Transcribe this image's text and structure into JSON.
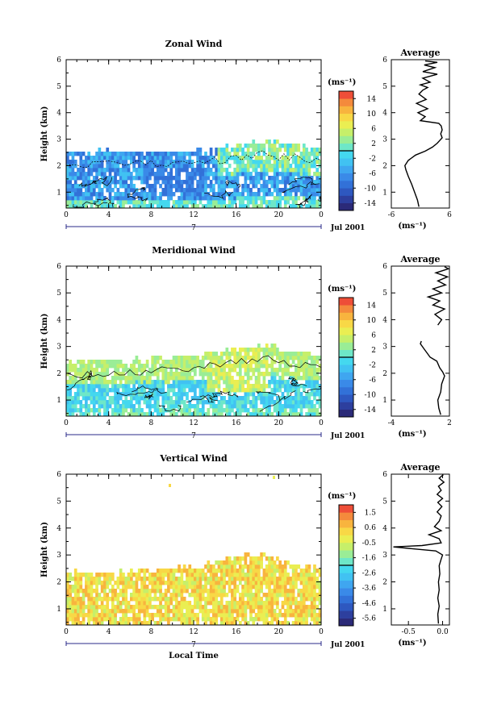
{
  "chart_data": [
    {
      "type": "heatmap",
      "title": "Zonal Wind",
      "ylabel": "Height (km)",
      "x_ticks": [
        "0",
        "4",
        "8",
        "12",
        "16",
        "20",
        "0"
      ],
      "y_ticks": [
        "1",
        "2",
        "3",
        "4",
        "5",
        "6"
      ],
      "xlim": [
        0,
        24
      ],
      "ylim": [
        0.4,
        6
      ],
      "day_label": "7",
      "date_label": "Jul 2001",
      "colorbar_unit": "(ms⁻¹)",
      "colorbar_ticks": [
        "14",
        "10",
        "6",
        "2",
        "-2",
        "-6",
        "-10",
        "-14"
      ],
      "colorbar_range": [
        -16,
        16
      ],
      "data_top_km": [
        2.45,
        2.42,
        2.45,
        2.47,
        2.45,
        2.44,
        2.45,
        2.45,
        2.46,
        2.45,
        2.46,
        2.47,
        2.5,
        2.55,
        2.6,
        2.65,
        2.72,
        2.78,
        2.85,
        2.85,
        2.75,
        2.72,
        2.68,
        2.65
      ],
      "profile": {
        "title": "Average",
        "xlabel": "(ms⁻¹)",
        "x_ticks": [
          "-6",
          "6"
        ],
        "xlim": [
          -6,
          6
        ],
        "y_ticks": [
          "1",
          "2",
          "3",
          "4",
          "5",
          "6"
        ],
        "ylim": [
          0.4,
          6
        ],
        "points": [
          [
            -0.3,
            0.45
          ],
          [
            -0.6,
            0.7
          ],
          [
            -1.2,
            1.0
          ],
          [
            -1.8,
            1.3
          ],
          [
            -2.5,
            1.6
          ],
          [
            -3.0,
            1.85
          ],
          [
            -3.2,
            2.0
          ],
          [
            -2.5,
            2.2
          ],
          [
            -1.0,
            2.4
          ],
          [
            1.0,
            2.55
          ],
          [
            2.5,
            2.7
          ],
          [
            3.5,
            2.85
          ],
          [
            4.0,
            2.95
          ],
          [
            4.5,
            3.05
          ],
          [
            4.2,
            3.2
          ],
          [
            4.5,
            3.35
          ],
          [
            4.3,
            3.5
          ],
          [
            3.8,
            3.6
          ],
          [
            0.0,
            3.7
          ],
          [
            1.0,
            3.85
          ],
          [
            -0.5,
            4.0
          ],
          [
            1.5,
            4.15
          ],
          [
            -0.8,
            4.35
          ],
          [
            1.2,
            4.5
          ],
          [
            -0.3,
            4.7
          ],
          [
            0.5,
            4.85
          ],
          [
            1.5,
            4.95
          ],
          [
            0.0,
            5.05
          ],
          [
            2.0,
            5.15
          ],
          [
            0.5,
            5.3
          ],
          [
            3.5,
            5.45
          ],
          [
            0.5,
            5.55
          ],
          [
            3.0,
            5.7
          ],
          [
            0.8,
            5.8
          ],
          [
            3.5,
            5.9
          ],
          [
            1.0,
            5.95
          ]
        ]
      }
    },
    {
      "type": "heatmap",
      "title": "Meridional Wind",
      "ylabel": "Height (km)",
      "x_ticks": [
        "0",
        "4",
        "8",
        "12",
        "16",
        "20",
        "0"
      ],
      "y_ticks": [
        "1",
        "2",
        "3",
        "4",
        "5",
        "6"
      ],
      "xlim": [
        0,
        24
      ],
      "ylim": [
        0.4,
        6
      ],
      "day_label": "7",
      "date_label": "Jul 2001",
      "colorbar_unit": "(ms⁻¹)",
      "colorbar_ticks": [
        "14",
        "10",
        "6",
        "2",
        "-2",
        "-6",
        "-10",
        "-14"
      ],
      "colorbar_range": [
        -16,
        16
      ],
      "data_top_km": [
        2.35,
        2.35,
        2.38,
        2.4,
        2.4,
        2.4,
        2.45,
        2.45,
        2.55,
        2.5,
        2.6,
        2.6,
        2.55,
        2.7,
        2.75,
        2.8,
        2.85,
        2.9,
        2.95,
        2.95,
        2.75,
        2.7,
        2.7,
        2.65
      ],
      "profile": {
        "title": "Average",
        "xlabel": "(ms⁻¹)",
        "x_ticks": [
          "-4",
          "2"
        ],
        "xlim": [
          -4,
          2
        ],
        "y_ticks": [
          "1",
          "2",
          "3",
          "4",
          "5",
          "6"
        ],
        "ylim": [
          0.4,
          6
        ],
        "points": [
          [
            1.1,
            0.45
          ],
          [
            0.9,
            0.7
          ],
          [
            0.8,
            1.0
          ],
          [
            1.1,
            1.3
          ],
          [
            1.2,
            1.6
          ],
          [
            1.5,
            1.9
          ],
          [
            1.3,
            2.05
          ],
          [
            1.0,
            2.2
          ],
          [
            0.7,
            2.45
          ],
          [
            0.0,
            2.6
          ],
          [
            -0.3,
            2.75
          ],
          [
            -0.6,
            2.9
          ],
          [
            -0.8,
            3.0
          ],
          [
            -1.0,
            3.1
          ],
          [
            -0.9,
            3.2
          ]
        ],
        "points2": [
          [
            0.8,
            3.8
          ],
          [
            1.2,
            4.0
          ],
          [
            0.5,
            4.2
          ],
          [
            1.5,
            4.4
          ],
          [
            0.3,
            4.55
          ],
          [
            1.0,
            4.7
          ],
          [
            -0.2,
            4.85
          ],
          [
            1.2,
            5.0
          ],
          [
            0.3,
            5.15
          ],
          [
            1.6,
            5.3
          ],
          [
            0.8,
            5.45
          ],
          [
            1.8,
            5.6
          ],
          [
            0.6,
            5.75
          ],
          [
            1.9,
            5.9
          ],
          [
            1.5,
            5.98
          ]
        ]
      }
    },
    {
      "type": "heatmap",
      "title": "Vertical Wind",
      "ylabel": "Height (km)",
      "xlabel": "Local Time",
      "x_ticks": [
        "0",
        "4",
        "8",
        "12",
        "16",
        "20",
        "0"
      ],
      "y_ticks": [
        "1",
        "2",
        "3",
        "4",
        "5",
        "6"
      ],
      "xlim": [
        0,
        24
      ],
      "ylim": [
        0.4,
        6
      ],
      "day_label": "7",
      "date_label": "Jul 2001",
      "colorbar_unit": "(ms⁻¹)",
      "colorbar_ticks": [
        "1.5",
        "0.6",
        "-0.5",
        "-1.6",
        "-2.6",
        "-3.6",
        "-4.6",
        "-5.6"
      ],
      "colorbar_range": [
        -6.1,
        2.0
      ],
      "data_top_km": [
        2.3,
        2.3,
        2.25,
        2.3,
        2.3,
        2.35,
        2.35,
        2.35,
        2.4,
        2.4,
        2.45,
        2.45,
        2.5,
        2.6,
        2.7,
        2.85,
        2.9,
        2.95,
        3.0,
        2.85,
        2.7,
        2.6,
        2.5,
        2.45
      ],
      "profile": {
        "title": "Average",
        "xlabel": "(ms⁻¹)",
        "x_ticks": [
          "-0.5",
          "0.0"
        ],
        "xlim": [
          -0.75,
          0.1
        ],
        "y_ticks": [
          "1",
          "2",
          "3",
          "4",
          "5",
          "6"
        ],
        "ylim": [
          0.4,
          6
        ],
        "points": [
          [
            -0.06,
            0.45
          ],
          [
            -0.07,
            0.8
          ],
          [
            -0.05,
            1.1
          ],
          [
            -0.07,
            1.4
          ],
          [
            -0.05,
            1.7
          ],
          [
            -0.06,
            2.0
          ],
          [
            -0.04,
            2.3
          ],
          [
            -0.05,
            2.6
          ],
          [
            -0.02,
            2.85
          ],
          [
            0.0,
            3.0
          ],
          [
            -0.1,
            3.15
          ],
          [
            -0.72,
            3.3
          ],
          [
            -0.3,
            3.35
          ],
          [
            -0.02,
            3.45
          ],
          [
            -0.05,
            3.6
          ],
          [
            -0.2,
            3.75
          ],
          [
            -0.02,
            3.9
          ],
          [
            -0.12,
            4.05
          ],
          [
            -0.05,
            4.25
          ],
          [
            -0.02,
            4.45
          ],
          [
            -0.08,
            4.6
          ],
          [
            -0.01,
            4.8
          ],
          [
            -0.07,
            4.95
          ],
          [
            0.0,
            5.1
          ],
          [
            -0.08,
            5.25
          ],
          [
            -0.02,
            5.4
          ],
          [
            -0.06,
            5.55
          ],
          [
            0.02,
            5.7
          ],
          [
            -0.05,
            5.85
          ],
          [
            0.01,
            5.98
          ]
        ]
      }
    }
  ]
}
